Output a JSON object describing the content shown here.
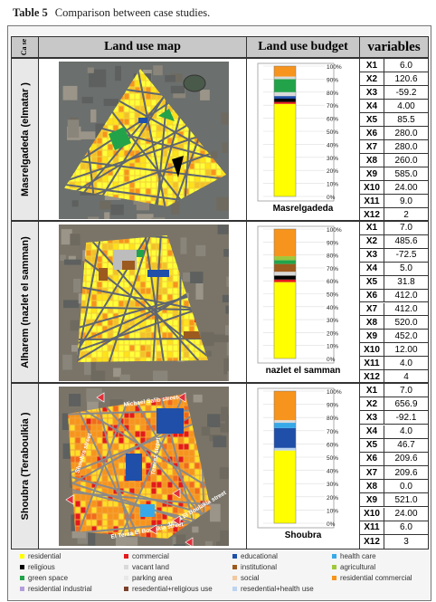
{
  "caption": {
    "label": "Table 5",
    "text": "Comparison between case studies."
  },
  "headers": {
    "case": "Ca se",
    "map": "Land use map",
    "budget": "Land use budget",
    "variables": "variables"
  },
  "axis_ticks": [
    "100%",
    "90%",
    "80%",
    "70%",
    "60%",
    "50%",
    "40%",
    "30%",
    "20%",
    "10%",
    "0%"
  ],
  "colors": {
    "residential": "#ffff00",
    "commercial": "#e31a1c",
    "educational": "#1f4fa8",
    "health_care": "#38a9e8",
    "religious": "#000000",
    "vacant_land": "#d9d9d9",
    "institutional": "#9c5a1e",
    "agricultural": "#a0c83c",
    "green_space": "#22a34a",
    "parking_area": "#e8e8e8",
    "social": "#f2c9a0",
    "residential_commercial": "#f7941d",
    "residential_industrial": "#b39ddb",
    "residential_religious": "#7b3f2a",
    "residential_health": "#bcd4f0"
  },
  "cases": [
    {
      "label": "Masrelgadeda (elmatar )",
      "budget_name": "Masrelgadeda",
      "map_icon": "aerial-map-masrelgadeda",
      "chart_data": {
        "type": "bar",
        "stacked": true,
        "ylim": [
          0,
          100
        ],
        "segments": [
          {
            "use": "residential",
            "value": 71
          },
          {
            "use": "commercial",
            "value": 1.5
          },
          {
            "use": "religious",
            "value": 2.5
          },
          {
            "use": "educational",
            "value": 2
          },
          {
            "use": "vacant_land",
            "value": 3
          },
          {
            "use": "green_space",
            "value": 10
          },
          {
            "use": "vacant_land",
            "value": 2
          },
          {
            "use": "residential_commercial",
            "value": 8
          }
        ]
      },
      "variables": [
        {
          "key": "X1",
          "value": "6.0"
        },
        {
          "key": "X2",
          "value": "120.6"
        },
        {
          "key": "X3",
          "value": "-59.2"
        },
        {
          "key": "X4",
          "value": "4.00"
        },
        {
          "key": "X5",
          "value": "85.5"
        },
        {
          "key": "X6",
          "value": "280.0"
        },
        {
          "key": "X7",
          "value": "280.0"
        },
        {
          "key": "X8",
          "value": "260.0"
        },
        {
          "key": "X9",
          "value": "585.0"
        },
        {
          "key": "X10",
          "value": "24.00"
        },
        {
          "key": "X11",
          "value": "9.0"
        },
        {
          "key": "X12",
          "value": "2"
        }
      ]
    },
    {
      "label": "Alharem (nazlet el samman)",
      "budget_name": "nazlet el samman",
      "map_icon": "aerial-map-alharem",
      "chart_data": {
        "type": "bar",
        "stacked": true,
        "ylim": [
          0,
          100
        ],
        "segments": [
          {
            "use": "residential",
            "value": 59
          },
          {
            "use": "commercial",
            "value": 2
          },
          {
            "use": "religious",
            "value": 3
          },
          {
            "use": "vacant_land",
            "value": 3
          },
          {
            "use": "institutional",
            "value": 6
          },
          {
            "use": "green_space",
            "value": 3
          },
          {
            "use": "agricultural",
            "value": 3
          },
          {
            "use": "residential_commercial",
            "value": 21
          }
        ]
      },
      "variables": [
        {
          "key": "X1",
          "value": "7.0"
        },
        {
          "key": "X2",
          "value": "485.6"
        },
        {
          "key": "X3",
          "value": "-72.5"
        },
        {
          "key": "X4",
          "value": "5.0"
        },
        {
          "key": "X5",
          "value": "31.8"
        },
        {
          "key": "X6",
          "value": "412.0"
        },
        {
          "key": "X7",
          "value": "412.0"
        },
        {
          "key": "X8",
          "value": "520.0"
        },
        {
          "key": "X9",
          "value": "452.0"
        },
        {
          "key": "X10",
          "value": "12.00"
        },
        {
          "key": "X11",
          "value": "4.0"
        },
        {
          "key": "X12",
          "value": "4"
        }
      ]
    },
    {
      "label": "Shoubra (Teraboulkia )",
      "budget_name": "Shoubra",
      "map_icon": "aerial-map-shoubra",
      "chart_data": {
        "type": "bar",
        "stacked": true,
        "ylim": [
          0,
          100
        ],
        "segments": [
          {
            "use": "residential",
            "value": 55
          },
          {
            "use": "residential_health",
            "value": 2
          },
          {
            "use": "educational",
            "value": 15
          },
          {
            "use": "health_care",
            "value": 4
          },
          {
            "use": "vacant_land",
            "value": 2
          },
          {
            "use": "residential_commercial",
            "value": 22
          }
        ]
      },
      "variables": [
        {
          "key": "X1",
          "value": "7.0"
        },
        {
          "key": "X2",
          "value": "656.9"
        },
        {
          "key": "X3",
          "value": "-92.1"
        },
        {
          "key": "X4",
          "value": "4.0"
        },
        {
          "key": "X5",
          "value": "46.7"
        },
        {
          "key": "X6",
          "value": "209.6"
        },
        {
          "key": "X7",
          "value": "209.6"
        },
        {
          "key": "X8",
          "value": "0.0"
        },
        {
          "key": "X9",
          "value": "521.0"
        },
        {
          "key": "X10",
          "value": "24.00"
        },
        {
          "key": "X11",
          "value": "6.0"
        },
        {
          "key": "X12",
          "value": "3"
        }
      ]
    }
  ],
  "map_street_labels": [
    "Michael Salib street",
    "Shoubra street",
    "Temraz street",
    "El Teraa El Boulakia street",
    "Teraa El Boulakia street"
  ],
  "legend": [
    {
      "use": "residential",
      "label": "residential"
    },
    {
      "use": "commercial",
      "label": "commercial"
    },
    {
      "use": "educational",
      "label": "educational"
    },
    {
      "use": "health_care",
      "label": "health care"
    },
    {
      "use": "religious",
      "label": "religious"
    },
    {
      "use": "vacant_land",
      "label": "vacant land"
    },
    {
      "use": "institutional",
      "label": "institutional"
    },
    {
      "use": "agricultural",
      "label": "agricultural"
    },
    {
      "use": "green_space",
      "label": "green space"
    },
    {
      "use": "parking_area",
      "label": "parking area"
    },
    {
      "use": "social",
      "label": "social"
    },
    {
      "use": "residential_commercial",
      "label": "residential commercial"
    },
    {
      "use": "residential_industrial",
      "label": "residential industrial"
    },
    {
      "use": "residential_religious",
      "label": "resedential+religious use"
    },
    {
      "use": "residential_health",
      "label": "resedential+health use"
    }
  ]
}
